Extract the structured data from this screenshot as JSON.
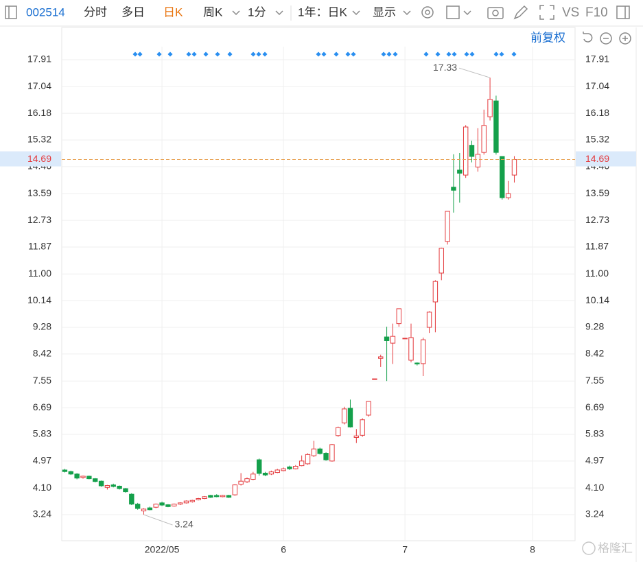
{
  "toolbar": {
    "code": "002514",
    "tabs": [
      "分时",
      "多日",
      "日K",
      "周K",
      "1分",
      "1年：日K",
      "显示"
    ],
    "tools": [
      "VS",
      "F10"
    ],
    "adjust": "前复权"
  },
  "watermark": "格隆汇",
  "chart_data": {
    "type": "candlestick",
    "up_color": "#e4393c",
    "down_color": "#14a04b",
    "grid": true,
    "open": [
      4.68,
      4.63,
      4.55,
      4.44,
      4.48,
      4.4,
      4.32,
      4.12,
      4.2,
      4.16,
      4.08,
      3.9,
      3.58,
      3.36,
      3.46,
      3.48,
      3.62,
      3.56,
      3.52,
      3.58,
      3.62,
      3.66,
      3.72,
      3.76,
      3.86,
      3.86,
      3.82,
      3.86,
      3.88,
      4.22,
      4.3,
      4.38,
      5.01,
      4.58,
      4.55,
      4.6,
      4.66,
      4.78,
      4.72,
      4.82,
      4.88,
      5.14,
      5.36,
      5.22,
      4.97,
      5.79,
      6.2,
      6.67,
      5.73,
      5.8,
      6.45,
      7.62,
      8.28,
      8.97,
      8.77,
      9.4,
      8.93,
      8.22,
      8.13,
      8.11,
      9.28,
      10.1,
      11.03,
      12.05,
      13.8,
      14.35,
      14.19,
      15.15,
      14.45,
      14.92,
      16.07,
      16.58,
      14.79,
      13.46,
      14.19
    ],
    "high": [
      4.72,
      4.66,
      4.58,
      4.5,
      4.5,
      4.42,
      4.34,
      4.2,
      4.24,
      4.18,
      4.1,
      3.93,
      3.62,
      3.45,
      3.5,
      3.6,
      3.66,
      3.58,
      3.6,
      3.64,
      3.7,
      3.72,
      3.78,
      3.84,
      3.88,
      3.9,
      3.88,
      3.88,
      4.22,
      4.58,
      4.44,
      4.62,
      5.05,
      4.62,
      4.66,
      4.72,
      4.76,
      4.82,
      4.84,
      5.15,
      5.22,
      5.62,
      5.4,
      5.25,
      5.52,
      6.08,
      6.72,
      6.95,
      6.0,
      6.35,
      6.89,
      7.62,
      8.4,
      9.3,
      9.4,
      9.88,
      8.93,
      9.4,
      8.15,
      8.95,
      9.8,
      10.8,
      11.85,
      13.02,
      14.86,
      14.9,
      15.8,
      15.3,
      15.7,
      16.3,
      17.33,
      16.75,
      14.8,
      14.0,
      14.8
    ],
    "low": [
      4.6,
      4.52,
      4.38,
      4.4,
      4.38,
      4.28,
      4.14,
      4.05,
      4.12,
      4.05,
      3.95,
      3.55,
      3.4,
      3.24,
      3.38,
      3.45,
      3.52,
      3.48,
      3.5,
      3.55,
      3.6,
      3.63,
      3.7,
      3.74,
      3.78,
      3.8,
      3.8,
      3.78,
      3.85,
      4.18,
      4.26,
      4.35,
      4.5,
      4.48,
      4.52,
      4.58,
      4.64,
      4.68,
      4.7,
      4.8,
      4.85,
      5.1,
      5.18,
      4.98,
      4.95,
      5.75,
      6.15,
      6.05,
      5.55,
      5.75,
      6.4,
      7.62,
      8.0,
      7.55,
      8.1,
      9.3,
      8.93,
      8.15,
      8.05,
      7.71,
      9.1,
      9.12,
      10.8,
      11.95,
      12.98,
      13.3,
      14.1,
      14.6,
      14.3,
      14.85,
      15.95,
      14.85,
      13.4,
      13.4,
      13.95
    ],
    "close": [
      4.63,
      4.55,
      4.42,
      4.48,
      4.4,
      4.31,
      4.17,
      4.18,
      4.15,
      4.08,
      3.98,
      3.58,
      3.44,
      3.42,
      3.4,
      3.58,
      3.55,
      3.5,
      3.58,
      3.62,
      3.68,
      3.7,
      3.76,
      3.82,
      3.8,
      3.82,
      3.86,
      3.8,
      4.2,
      4.32,
      4.4,
      4.55,
      4.57,
      4.52,
      4.62,
      4.68,
      4.72,
      4.72,
      4.8,
      4.97,
      5.18,
      5.36,
      5.21,
      5.01,
      5.5,
      6.05,
      6.65,
      6.07,
      5.78,
      6.3,
      6.89,
      7.62,
      8.33,
      8.85,
      8.99,
      9.88,
      8.93,
      8.95,
      8.1,
      8.88,
      9.77,
      10.76,
      11.83,
      13.02,
      13.7,
      14.25,
      15.74,
      14.79,
      14.86,
      15.79,
      16.63,
      14.92,
      13.46,
      13.59,
      14.69
    ],
    "xlim": [
      -0.5,
      84
    ],
    "xticks": [
      {
        "value": 16,
        "label": "2022/05"
      },
      {
        "value": 36,
        "label": "6"
      },
      {
        "value": 56,
        "label": "7"
      },
      {
        "value": 77,
        "label": "8"
      }
    ],
    "ylim": [
      2.4,
      18.33
    ],
    "yticks": [
      3.24,
      {
        "value": 4.1,
        "label": "4.10"
      },
      4.97,
      5.83,
      6.69,
      7.55,
      8.42,
      9.28,
      10.14,
      {
        "value": 11,
        "label": "11.00"
      },
      11.87,
      12.73,
      13.59,
      14.46,
      15.32,
      16.18,
      17.04,
      17.91
    ]
  }
}
